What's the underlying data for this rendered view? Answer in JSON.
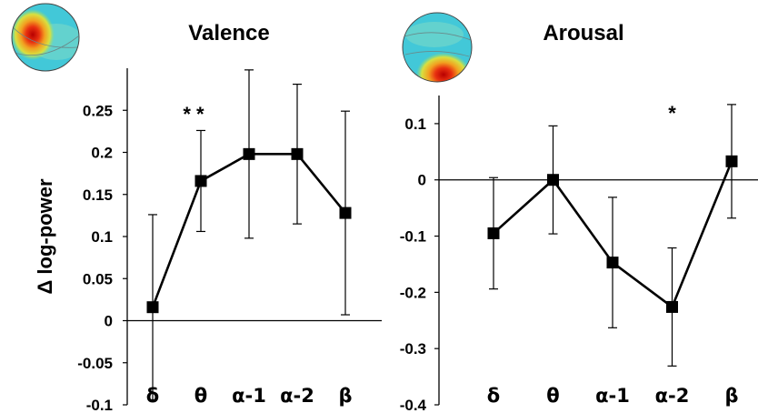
{
  "chart_data": [
    {
      "type": "line",
      "title": "Valence",
      "ylabel": "Δ log-power",
      "categories": [
        "δ",
        "θ",
        "α-1",
        "α-2",
        "β"
      ],
      "values": [
        0.016,
        0.166,
        0.198,
        0.198,
        0.128
      ],
      "error": [
        0.11,
        0.06,
        0.1,
        0.083,
        0.121
      ],
      "ylim": [
        -0.1,
        0.3
      ],
      "yticks": [
        "0.25",
        "0.2",
        "0.15",
        "0.1",
        "0.05",
        "0",
        "-0.05",
        "-0.1"
      ],
      "significance": [
        "",
        "**",
        "",
        "",
        ""
      ],
      "topomap_hotspot": "top-left"
    },
    {
      "type": "line",
      "title": "Arousal",
      "ylabel": "",
      "categories": [
        "δ",
        "θ",
        "α-1",
        "α-2",
        "β"
      ],
      "values": [
        -0.095,
        0.0,
        -0.147,
        -0.226,
        0.033
      ],
      "error": [
        0.099,
        0.096,
        0.116,
        0.105,
        0.101
      ],
      "ylim": [
        -0.4,
        0.15
      ],
      "yticks": [
        "0.1",
        "0",
        "-0.1",
        "-0.2",
        "-0.3",
        "-0.4"
      ],
      "significance": [
        "",
        "",
        "",
        "*",
        ""
      ],
      "topomap_hotspot": "bottom"
    }
  ],
  "colors": {
    "line": "#000000",
    "topo_background": "#3fc8d8",
    "topo_hot": "#d01010"
  }
}
